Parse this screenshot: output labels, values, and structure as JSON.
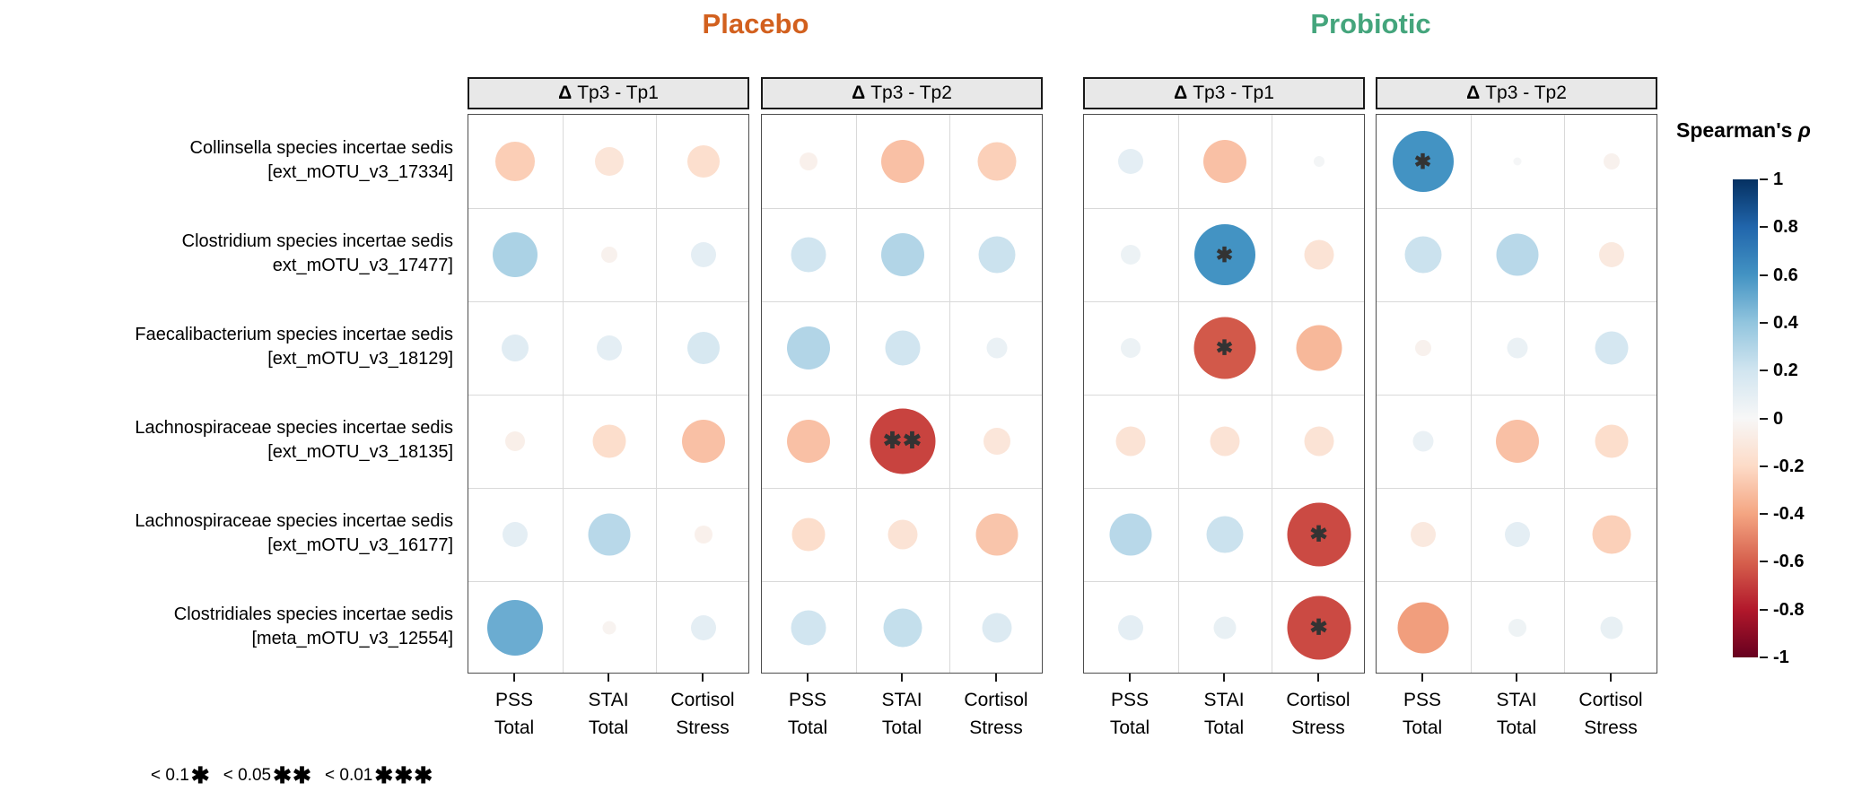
{
  "titles": {
    "placebo": "Placebo",
    "probiotic": "Probiotic",
    "placebo_color": "#D2601E",
    "probiotic_color": "#44A57C"
  },
  "legend": {
    "title": "Spearman's",
    "rho": "ρ",
    "ticks": [
      "1",
      "0.8",
      "0.6",
      "0.4",
      "0.2",
      "0",
      "-0.2",
      "-0.4",
      "-0.6",
      "-0.8",
      "-1"
    ]
  },
  "significance_legend": [
    {
      "threshold": "< 0.1",
      "stars": "✱"
    },
    {
      "threshold": "< 0.05",
      "stars": "✱✱"
    },
    {
      "threshold": "< 0.01",
      "stars": "✱✱✱"
    }
  ],
  "chart_data": {
    "type": "heatmap",
    "subtype": "correlation-bubble-matrix",
    "value_label": "Spearman's ρ",
    "value_range": [
      -1,
      1
    ],
    "legend_position": "right",
    "grid": true,
    "rows": [
      {
        "line1": "Collinsella species incertae sedis",
        "line2": "[ext_mOTU_v3_17334]"
      },
      {
        "line1": "Clostridium species incertae sedis",
        "line2": "ext_mOTU_v3_17477]"
      },
      {
        "line1": "Faecalibacterium species incertae sedis",
        "line2": "[ext_mOTU_v3_18129]"
      },
      {
        "line1": "Lachnospiraceae species incertae sedis",
        "line2": "[ext_mOTU_v3_18135]"
      },
      {
        "line1": "Lachnospiraceae species incertae sedis",
        "line2": "[ext_mOTU_v3_16177]"
      },
      {
        "line1": "Clostridiales species incertae sedis",
        "line2": "[meta_mOTU_v3_12554]"
      }
    ],
    "columns": [
      {
        "line1": "PSS",
        "line2": "Total"
      },
      {
        "line1": "STAI",
        "line2": "Total"
      },
      {
        "line1": "Cortisol",
        "line2": "Stress"
      }
    ],
    "panels": [
      {
        "group": "Placebo",
        "comparison": "Δ Tp3 - Tp1",
        "values": [
          [
            -0.25,
            -0.13,
            -0.17
          ],
          [
            0.32,
            -0.04,
            0.1
          ],
          [
            0.12,
            0.1,
            0.17
          ],
          [
            -0.06,
            -0.18,
            -0.3
          ],
          [
            0.1,
            0.28,
            -0.05
          ],
          [
            0.5,
            -0.03,
            0.1
          ]
        ],
        "sig": [
          [
            "",
            "",
            ""
          ],
          [
            "",
            "",
            ""
          ],
          [
            "",
            "",
            ""
          ],
          [
            "",
            "",
            ""
          ],
          [
            "",
            "",
            ""
          ],
          [
            "",
            "",
            ""
          ]
        ]
      },
      {
        "group": "Placebo",
        "comparison": "Δ Tp3 - Tp2",
        "values": [
          [
            -0.05,
            -0.3,
            -0.24
          ],
          [
            0.2,
            0.3,
            0.22
          ],
          [
            0.3,
            0.2,
            0.07
          ],
          [
            -0.3,
            -0.68,
            -0.12
          ],
          [
            -0.18,
            -0.14,
            -0.28
          ],
          [
            0.2,
            0.24,
            0.14
          ]
        ],
        "sig": [
          [
            "",
            "",
            ""
          ],
          [
            "",
            "",
            ""
          ],
          [
            "",
            "",
            ""
          ],
          [
            "",
            "✱✱",
            ""
          ],
          [
            "",
            "",
            ""
          ],
          [
            "",
            "",
            ""
          ]
        ]
      },
      {
        "group": "Probiotic",
        "comparison": "Δ Tp3 - Tp1",
        "values": [
          [
            0.1,
            -0.3,
            0.02
          ],
          [
            0.06,
            0.6,
            -0.14
          ],
          [
            0.06,
            -0.62,
            -0.33
          ],
          [
            -0.14,
            -0.14,
            -0.14
          ],
          [
            0.28,
            0.22,
            -0.66
          ],
          [
            0.1,
            0.08,
            -0.66
          ]
        ],
        "sig": [
          [
            "",
            "",
            ""
          ],
          [
            "",
            "✱",
            ""
          ],
          [
            "",
            "✱",
            ""
          ],
          [
            "",
            "",
            ""
          ],
          [
            "",
            "",
            "✱"
          ],
          [
            "",
            "",
            "✱"
          ]
        ]
      },
      {
        "group": "Probiotic",
        "comparison": "Δ Tp3 - Tp2",
        "values": [
          [
            0.6,
            0.01,
            -0.04
          ],
          [
            0.22,
            0.28,
            -0.1
          ],
          [
            -0.04,
            0.07,
            0.18
          ],
          [
            0.07,
            -0.3,
            -0.18
          ],
          [
            -0.1,
            0.1,
            -0.24
          ],
          [
            -0.42,
            0.05,
            0.08
          ]
        ],
        "sig": [
          [
            "✱",
            "",
            ""
          ],
          [
            "",
            "",
            ""
          ],
          [
            "",
            "",
            ""
          ],
          [
            "",
            "",
            ""
          ],
          [
            "",
            "",
            ""
          ],
          [
            "",
            "",
            ""
          ]
        ]
      }
    ],
    "colorscale": {
      "name": "RdBu",
      "stops": [
        [
          -1.0,
          "#67001F"
        ],
        [
          -0.8,
          "#B2182B"
        ],
        [
          -0.6,
          "#D6604D"
        ],
        [
          -0.4,
          "#F4A582"
        ],
        [
          -0.2,
          "#FDDBC7"
        ],
        [
          0.0,
          "#F7F7F7"
        ],
        [
          0.2,
          "#D1E5F0"
        ],
        [
          0.4,
          "#92C5DE"
        ],
        [
          0.6,
          "#4393C3"
        ],
        [
          0.8,
          "#2166AC"
        ],
        [
          1.0,
          "#053061"
        ]
      ]
    }
  }
}
